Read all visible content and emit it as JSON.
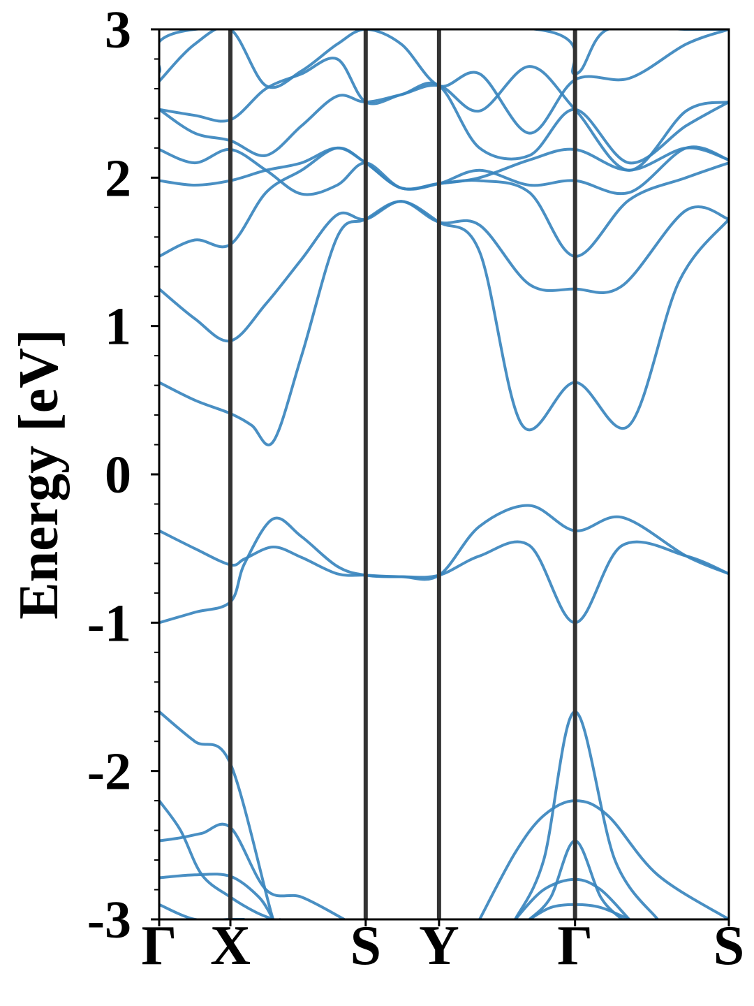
{
  "chart_data": {
    "type": "line",
    "title": "",
    "xlabel": "",
    "ylabel": "Energy [eV]",
    "ylim": [
      -3,
      3
    ],
    "yticks": [
      "-3",
      "-2",
      "-1",
      "0",
      "1",
      "2",
      "3"
    ],
    "x_kpoints": [
      {
        "label": "Γ",
        "x": 0
      },
      {
        "label": "X",
        "x": 1
      },
      {
        "label": "S",
        "x": 2.9
      },
      {
        "label": "Y",
        "x": 3.93
      },
      {
        "label": "Γ",
        "x": 5.84
      },
      {
        "label": "S",
        "x": 8
      }
    ],
    "xlim": [
      0,
      8
    ],
    "grid": false,
    "legend": "none",
    "line_color": "#3a86be",
    "vline_color": "#333333",
    "series": [
      {
        "x": [
          0,
          0.5,
          1,
          1.2,
          1.6,
          2.0,
          2.5,
          2.9,
          3.4,
          3.93,
          4.5,
          5.2,
          5.84,
          6.5,
          7.4,
          8
        ],
        "values": [
          -1.0,
          -0.93,
          -0.86,
          -0.6,
          -0.3,
          -0.42,
          -0.62,
          -0.68,
          -0.69,
          -0.68,
          -0.55,
          -0.48,
          -1.0,
          -0.48,
          -0.55,
          -0.67
        ]
      },
      {
        "x": [
          0,
          0.5,
          1,
          1.2,
          1.6,
          2.0,
          2.5,
          2.9,
          3.4,
          3.93,
          4.5,
          5.2,
          5.84,
          6.5,
          7.4,
          8
        ],
        "values": [
          -0.38,
          -0.5,
          -0.61,
          -0.57,
          -0.49,
          -0.56,
          -0.67,
          -0.68,
          -0.69,
          -0.68,
          -0.35,
          -0.21,
          -0.38,
          -0.29,
          -0.55,
          -0.67
        ]
      },
      {
        "x": [
          0,
          0.5,
          1,
          1.3,
          1.6,
          2.0,
          2.5,
          2.9,
          3.4,
          3.93,
          4.5,
          5.1,
          5.84,
          6.6,
          7.3,
          8
        ],
        "values": [
          0.62,
          0.5,
          0.41,
          0.33,
          0.22,
          0.8,
          1.6,
          1.72,
          1.84,
          1.7,
          1.5,
          0.33,
          0.62,
          0.33,
          1.3,
          1.72
        ]
      },
      {
        "x": [
          0,
          0.5,
          1,
          1.5,
          2.0,
          2.5,
          2.9,
          3.4,
          3.93,
          4.5,
          5.2,
          5.84,
          6.5,
          7.4,
          8
        ],
        "values": [
          1.25,
          1.05,
          0.9,
          1.15,
          1.45,
          1.75,
          1.72,
          1.84,
          1.7,
          1.68,
          1.28,
          1.25,
          1.27,
          1.78,
          1.72
        ]
      },
      {
        "x": [
          0,
          0.5,
          1,
          1.5,
          2.0,
          2.5,
          2.9,
          3.4,
          3.93,
          4.5,
          5.2,
          5.84,
          6.6,
          7.4,
          8
        ],
        "values": [
          1.47,
          1.58,
          1.55,
          1.9,
          2.05,
          2.2,
          2.1,
          1.93,
          1.96,
          1.98,
          1.9,
          1.47,
          1.85,
          2.0,
          2.1
        ]
      },
      {
        "x": [
          0,
          0.5,
          1,
          1.5,
          2.0,
          2.5,
          2.9,
          3.4,
          3.93,
          4.5,
          5.2,
          5.84,
          6.6,
          7.4,
          8
        ],
        "values": [
          1.98,
          1.95,
          1.98,
          2.05,
          2.1,
          2.2,
          2.1,
          1.93,
          1.96,
          2.05,
          1.95,
          1.98,
          1.9,
          2.2,
          2.12
        ]
      },
      {
        "x": [
          0,
          0.5,
          1,
          1.5,
          2.0,
          2.5,
          2.9,
          3.4,
          3.93,
          4.5,
          5.2,
          5.84,
          6.6,
          7.4,
          8
        ],
        "values": [
          2.19,
          2.1,
          2.19,
          2.05,
          1.89,
          1.95,
          2.1,
          1.93,
          1.96,
          2.0,
          2.12,
          2.19,
          2.05,
          2.2,
          2.12
        ]
      },
      {
        "x": [
          0,
          0.5,
          1,
          1.5,
          2.0,
          2.5,
          2.9,
          3.4,
          3.93,
          4.5,
          5.2,
          5.84,
          6.6,
          7.4,
          8
        ],
        "values": [
          2.46,
          2.3,
          2.25,
          2.15,
          2.35,
          2.55,
          2.51,
          2.56,
          2.62,
          2.2,
          2.15,
          2.46,
          2.1,
          2.35,
          2.51
        ]
      },
      {
        "x": [
          0,
          0.5,
          1,
          1.5,
          2.0,
          2.5,
          2.9,
          3.4,
          3.93,
          4.5,
          5.2,
          5.84,
          6.6,
          7.4,
          8
        ],
        "values": [
          2.46,
          2.42,
          2.39,
          2.6,
          2.7,
          2.8,
          2.51,
          2.56,
          2.62,
          2.45,
          2.75,
          2.46,
          2.05,
          2.45,
          2.51
        ]
      },
      {
        "x": [
          0,
          0.5,
          1,
          1.5,
          2.0,
          2.5,
          2.9,
          3.4,
          3.93,
          4.5,
          5.2,
          5.84,
          6.6,
          7.4,
          8
        ],
        "values": [
          2.65,
          2.9,
          3.0,
          2.62,
          2.72,
          2.9,
          3.0,
          2.9,
          2.62,
          2.7,
          2.3,
          2.66,
          2.67,
          2.9,
          3.0
        ]
      },
      {
        "x": [
          0,
          0.5,
          5.3,
          5.84,
          6.3,
          7.4,
          8
        ],
        "values": [
          2.71,
          3.0,
          3.0,
          2.7,
          3.0,
          3.0,
          3.0
        ]
      },
      {
        "x": [
          0,
          0.5,
          1,
          1.6,
          1.7
        ],
        "values": [
          -1.6,
          -1.8,
          -1.95,
          -3.0,
          -3.0
        ]
      },
      {
        "x": [
          0,
          0.3,
          0.6,
          1,
          1.5,
          2.0,
          2.6
        ],
        "values": [
          -2.47,
          -2.45,
          -2.42,
          -2.38,
          -2.8,
          -2.85,
          -3.0
        ]
      },
      {
        "x": [
          0,
          0.3,
          0.6,
          1,
          1.35,
          1.6
        ],
        "values": [
          -2.2,
          -2.4,
          -2.7,
          -2.85,
          -2.95,
          -3.0
        ]
      },
      {
        "x": [
          0,
          0.5,
          1,
          1.4,
          1.6
        ],
        "values": [
          -2.72,
          -2.7,
          -2.71,
          -2.85,
          -3.0
        ]
      },
      {
        "x": [
          0,
          0.5,
          1,
          1.2
        ],
        "values": [
          -2.9,
          -3.0,
          -3.0,
          -3.0
        ]
      },
      {
        "x": [
          5.0,
          5.4,
          5.84,
          6.4,
          7.0
        ],
        "values": [
          -3.0,
          -2.6,
          -1.6,
          -2.6,
          -3.0
        ]
      },
      {
        "x": [
          4.5,
          5.0,
          5.4,
          5.84,
          6.3,
          7.0,
          8.0
        ],
        "values": [
          -3.0,
          -2.55,
          -2.3,
          -2.2,
          -2.3,
          -2.7,
          -3.0
        ]
      },
      {
        "x": [
          5.2,
          5.5,
          5.84,
          6.2,
          6.5
        ],
        "values": [
          -3.0,
          -2.85,
          -2.47,
          -2.85,
          -3.0
        ]
      },
      {
        "x": [
          5.0,
          5.4,
          5.84,
          6.2,
          6.6
        ],
        "values": [
          -3.0,
          -2.8,
          -2.73,
          -2.8,
          -3.0
        ]
      },
      {
        "x": [
          5.2,
          5.5,
          5.84,
          6.2,
          6.6
        ],
        "values": [
          -3.0,
          -2.92,
          -2.9,
          -2.92,
          -3.0
        ]
      }
    ]
  }
}
